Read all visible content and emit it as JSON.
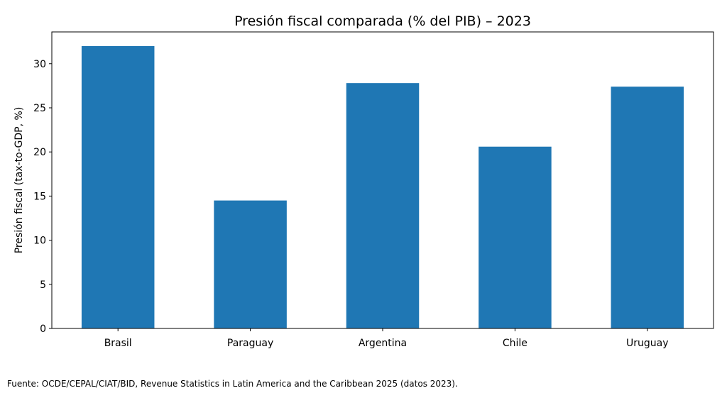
{
  "chart_data": {
    "type": "bar",
    "title": "Presión fiscal comparada (% del PIB) – 2023",
    "xlabel": "",
    "ylabel": "Presión fiscal (tax-to-GDP, %)",
    "categories": [
      "Brasil",
      "Paraguay",
      "Argentina",
      "Chile",
      "Uruguay"
    ],
    "values": [
      32.0,
      14.5,
      27.8,
      20.6,
      27.4
    ],
    "ylim": [
      0,
      33.6
    ],
    "yticks": [
      0,
      5,
      10,
      15,
      20,
      25,
      30
    ],
    "grid": false,
    "bar_color": "#1f77b4"
  },
  "source_note": "Fuente: OCDE/CEPAL/CIAT/BID, Revenue Statistics in Latin America and the Caribbean 2025 (datos 2023)."
}
